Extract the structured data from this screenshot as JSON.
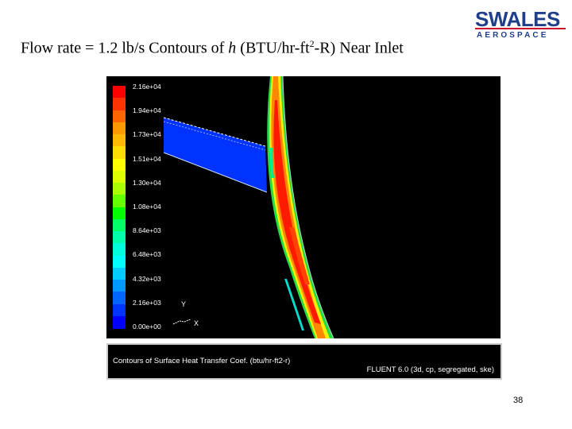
{
  "slide": {
    "title_prefix": "Flow rate = 1.2 lb/s Contours of ",
    "title_symbol": "h",
    "title_units_a": " (BTU/hr-ft",
    "title_units_sup": "2",
    "title_units_b": "-R) Near Inlet",
    "page_number": "38"
  },
  "logo": {
    "main": "SWALES",
    "sub": "AEROSPACE",
    "primary_color": "#1f3e8c",
    "accent_color": "#c8102e"
  },
  "plot": {
    "colorbar_labels": [
      "2.16e+04",
      "1.94e+04",
      "1.73e+04",
      "1.51e+04",
      "1.30e+04",
      "1.08e+04",
      "8.64e+03",
      "6.48e+03",
      "4.32e+03",
      "2.16e+03",
      "0.00e+00"
    ],
    "colorbar_colors": [
      "#ff0000",
      "#ff3300",
      "#ff6600",
      "#ff9900",
      "#ffbb00",
      "#ffdd00",
      "#ffff00",
      "#ddff00",
      "#aaff00",
      "#66ff00",
      "#00ff00",
      "#00ff66",
      "#00ffaa",
      "#00ffdd",
      "#00ffff",
      "#00ccff",
      "#0099ff",
      "#0066ff",
      "#0033ff",
      "#0000ff"
    ],
    "axis_y": "Y",
    "axis_x": "X",
    "caption_left": "Contours of Surface Heat Transfer Coef. (btu/hr-ft2-r)",
    "caption_right": "FLUENT 6.0 (3d, cp, segregated, ske)"
  }
}
